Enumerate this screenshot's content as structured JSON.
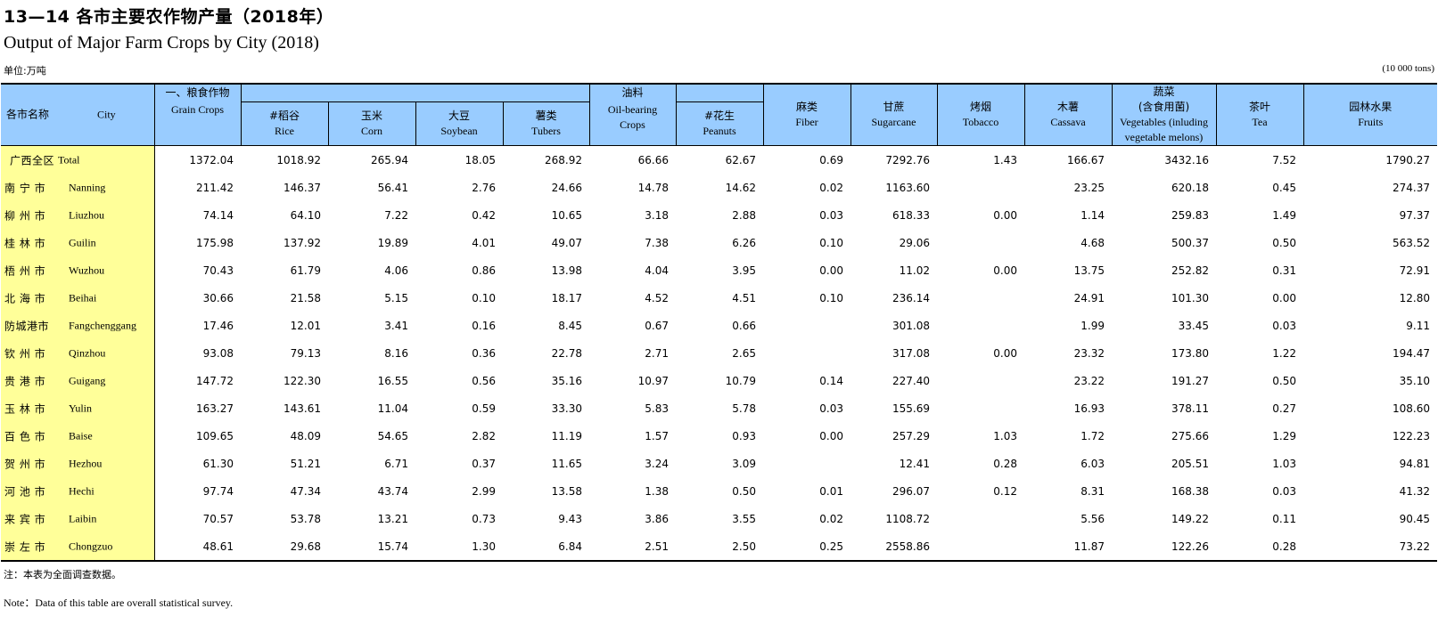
{
  "title_cn": "13—14  各市主要农作物产量（2018年）",
  "title_en": "Output of Major Farm Crops by City (2018)",
  "unit_cn": "单位:万吨",
  "unit_en": "(10 000 tons)",
  "header": {
    "region_cn": "各市名称",
    "region_en": "City",
    "grain_cn": "一、粮食作物",
    "grain_en": "Grain Crops",
    "rice_cn": "#稻谷",
    "rice_en": "Rice",
    "corn_cn": "玉米",
    "corn_en": "Corn",
    "soybean_cn": "大豆",
    "soybean_en": "Soybean",
    "tubers_cn": "薯类",
    "tubers_en": "Tubers",
    "oil_cn": "油料",
    "oil_en1": "Oil-bearing",
    "oil_en2": "Crops",
    "peanuts_cn": "#花生",
    "peanuts_en": "Peanuts",
    "fiber_cn": "麻类",
    "fiber_en": "Fiber",
    "sugarcane_cn": "甘蔗",
    "sugarcane_en": "Sugarcane",
    "tobacco_cn": "烤烟",
    "tobacco_en": "Tobacco",
    "cassava_cn": "木薯",
    "cassava_en": "Cassava",
    "veg_cn1": "蔬菜",
    "veg_cn2": "(含食用菌)",
    "veg_en1": "Vegetables (inluding",
    "veg_en2": "vegetable melons)",
    "tea_cn": "茶叶",
    "tea_en": "Tea",
    "fruits_cn": "园林水果",
    "fruits_en": "Fruits"
  },
  "rows": [
    {
      "cn": "广西全区",
      "en": "Total",
      "v": [
        "1372.04",
        "1018.92",
        "265.94",
        "18.05",
        "268.92",
        "66.66",
        "62.67",
        "0.69",
        "7292.76",
        "1.43",
        "166.67",
        "3432.16",
        "7.52",
        "1790.27"
      ]
    },
    {
      "cn": "南 宁 市",
      "en": "Nanning",
      "v": [
        "211.42",
        "146.37",
        "56.41",
        "2.76",
        "24.66",
        "14.78",
        "14.62",
        "0.02",
        "1163.60",
        "",
        "23.25",
        "620.18",
        "0.45",
        "274.37"
      ]
    },
    {
      "cn": "柳 州 市",
      "en": "Liuzhou",
      "v": [
        "74.14",
        "64.10",
        "7.22",
        "0.42",
        "10.65",
        "3.18",
        "2.88",
        "0.03",
        "618.33",
        "0.00",
        "1.14",
        "259.83",
        "1.49",
        "97.37"
      ]
    },
    {
      "cn": "桂 林 市",
      "en": "Guilin",
      "v": [
        "175.98",
        "137.92",
        "19.89",
        "4.01",
        "49.07",
        "7.38",
        "6.26",
        "0.10",
        "29.06",
        "",
        "4.68",
        "500.37",
        "0.50",
        "563.52"
      ]
    },
    {
      "cn": "梧 州 市",
      "en": "Wuzhou",
      "v": [
        "70.43",
        "61.79",
        "4.06",
        "0.86",
        "13.98",
        "4.04",
        "3.95",
        "0.00",
        "11.02",
        "0.00",
        "13.75",
        "252.82",
        "0.31",
        "72.91"
      ]
    },
    {
      "cn": "北 海 市",
      "en": "Beihai",
      "v": [
        "30.66",
        "21.58",
        "5.15",
        "0.10",
        "18.17",
        "4.52",
        "4.51",
        "0.10",
        "236.14",
        "",
        "24.91",
        "101.30",
        "0.00",
        "12.80"
      ]
    },
    {
      "cn": "防城港市",
      "en": "Fangchenggang",
      "v": [
        "17.46",
        "12.01",
        "3.41",
        "0.16",
        "8.45",
        "0.67",
        "0.66",
        "",
        "301.08",
        "",
        "1.99",
        "33.45",
        "0.03",
        "9.11"
      ]
    },
    {
      "cn": "钦 州 市",
      "en": "Qinzhou",
      "v": [
        "93.08",
        "79.13",
        "8.16",
        "0.36",
        "22.78",
        "2.71",
        "2.65",
        "",
        "317.08",
        "0.00",
        "23.32",
        "173.80",
        "1.22",
        "194.47"
      ]
    },
    {
      "cn": "贵 港 市",
      "en": "Guigang",
      "v": [
        "147.72",
        "122.30",
        "16.55",
        "0.56",
        "35.16",
        "10.97",
        "10.79",
        "0.14",
        "227.40",
        "",
        "23.22",
        "191.27",
        "0.50",
        "35.10"
      ]
    },
    {
      "cn": "玉 林 市",
      "en": "Yulin",
      "v": [
        "163.27",
        "143.61",
        "11.04",
        "0.59",
        "33.30",
        "5.83",
        "5.78",
        "0.03",
        "155.69",
        "",
        "16.93",
        "378.11",
        "0.27",
        "108.60"
      ]
    },
    {
      "cn": "百 色 市",
      "en": "Baise",
      "v": [
        "109.65",
        "48.09",
        "54.65",
        "2.82",
        "11.19",
        "1.57",
        "0.93",
        "0.00",
        "257.29",
        "1.03",
        "1.72",
        "275.66",
        "1.29",
        "122.23"
      ]
    },
    {
      "cn": "贺 州 市",
      "en": "Hezhou",
      "v": [
        "61.30",
        "51.21",
        "6.71",
        "0.37",
        "11.65",
        "3.24",
        "3.09",
        "",
        "12.41",
        "0.28",
        "6.03",
        "205.51",
        "1.03",
        "94.81"
      ]
    },
    {
      "cn": "河 池 市",
      "en": "Hechi",
      "v": [
        "97.74",
        "47.34",
        "43.74",
        "2.99",
        "13.58",
        "1.38",
        "0.50",
        "0.01",
        "296.07",
        "0.12",
        "8.31",
        "168.38",
        "0.03",
        "41.32"
      ]
    },
    {
      "cn": "来 宾 市",
      "en": "Laibin",
      "v": [
        "70.57",
        "53.78",
        "13.21",
        "0.73",
        "9.43",
        "3.86",
        "3.55",
        "0.02",
        "1108.72",
        "",
        "5.56",
        "149.22",
        "0.11",
        "90.45"
      ]
    },
    {
      "cn": "崇 左 市",
      "en": "Chongzuo",
      "v": [
        "48.61",
        "29.68",
        "15.74",
        "1.30",
        "6.84",
        "2.51",
        "2.50",
        "0.25",
        "2558.86",
        "",
        "11.87",
        "122.26",
        "0.28",
        "73.22"
      ]
    }
  ],
  "note_cn": "注：本表为全面调查数据。",
  "note_en": "Note：Data of this table are overall statistical survey."
}
